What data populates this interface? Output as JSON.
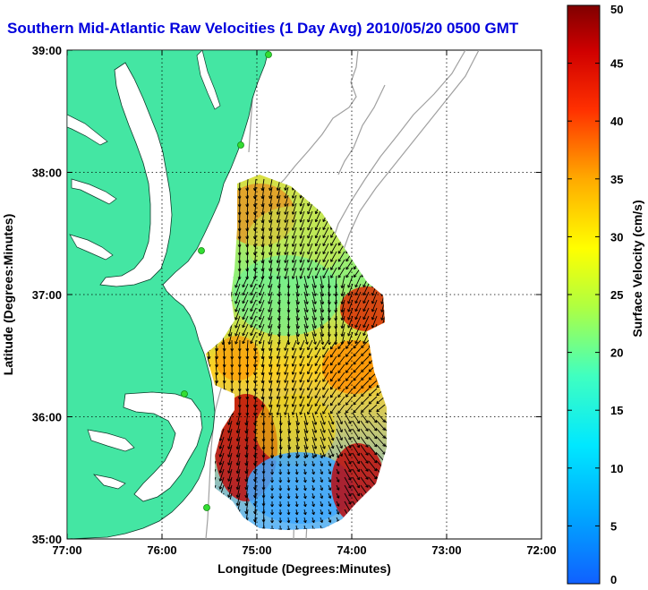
{
  "title": "Southern Mid-Atlantic Raw Velocities (1 Day Avg) 2010/05/20 0500 GMT",
  "x_axis": {
    "label": "Longitude (Degrees:Minutes)",
    "ticks": [
      "77:00",
      "76:00",
      "75:00",
      "74:00",
      "73:00",
      "72:00"
    ]
  },
  "y_axis": {
    "label": "Latitude (Degrees:Minutes)",
    "ticks": [
      "39:00",
      "38:00",
      "37:00",
      "36:00",
      "35:00"
    ]
  },
  "colorbar": {
    "label": "Surface Velocity (cm/s)",
    "ticks": [
      "50",
      "45",
      "40",
      "35",
      "30",
      "25",
      "20",
      "15",
      "10",
      "5",
      "0"
    ],
    "min": 0,
    "max": 50,
    "colormap": "jet"
  },
  "colors": {
    "land": "#44e6a3",
    "title": "#0000dd",
    "bathymetry": "#a0a0a0",
    "station": "#33dd33"
  },
  "map_extent": {
    "lon": [
      -77,
      -72
    ],
    "lat": [
      35,
      39
    ]
  },
  "grid": true
}
